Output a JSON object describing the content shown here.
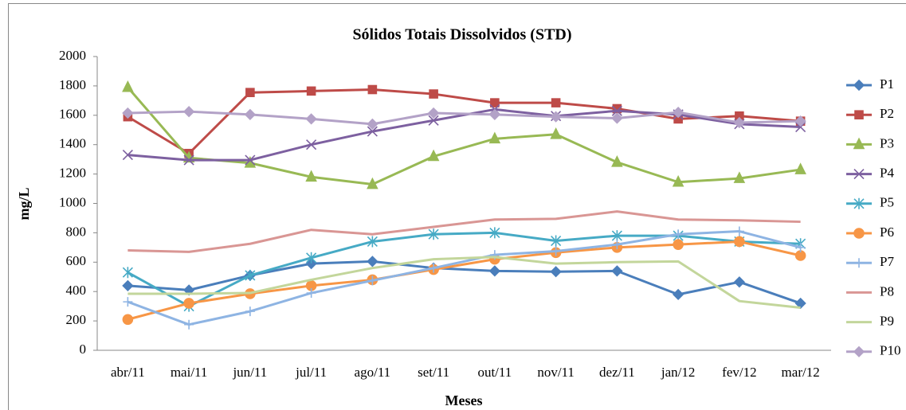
{
  "chart_data": {
    "type": "line",
    "title": "Sólidos Totais Dissolvidos (STD)",
    "x_label": "Meses",
    "y_label": "mg/L",
    "categories": [
      "abr/11",
      "mai/11",
      "jun/11",
      "jul/11",
      "ago/11",
      "set/11",
      "out/11",
      "nov/11",
      "dez/11",
      "jan/12",
      "fev/12",
      "mar/12"
    ],
    "ylim": [
      0,
      2000
    ],
    "yticks": [
      0,
      200,
      400,
      600,
      800,
      1000,
      1200,
      1400,
      1600,
      1800,
      2000
    ],
    "grid": false,
    "legend": "right",
    "series": [
      {
        "name": "P1",
        "color": "#4a7ebb",
        "marker": "diamond",
        "values": [
          440,
          410,
          510,
          590,
          605,
          560,
          540,
          535,
          540,
          380,
          465,
          320
        ]
      },
      {
        "name": "P2",
        "color": "#be4b48",
        "marker": "square",
        "values": [
          1590,
          1340,
          1755,
          1765,
          1775,
          1745,
          1685,
          1685,
          1645,
          1575,
          1595,
          1560
        ]
      },
      {
        "name": "P3",
        "color": "#98b954",
        "marker": "triangle",
        "values": [
          1790,
          1310,
          1275,
          1180,
          1130,
          1320,
          1440,
          1470,
          1280,
          1145,
          1170,
          1230
        ]
      },
      {
        "name": "P4",
        "color": "#7d60a0",
        "marker": "x",
        "values": [
          1330,
          1295,
          1295,
          1400,
          1490,
          1565,
          1640,
          1595,
          1630,
          1605,
          1540,
          1520
        ]
      },
      {
        "name": "P5",
        "color": "#46aac5",
        "marker": "star",
        "values": [
          530,
          300,
          510,
          630,
          740,
          790,
          800,
          745,
          780,
          780,
          740,
          725
        ]
      },
      {
        "name": "P6",
        "color": "#f79646",
        "marker": "circle",
        "values": [
          210,
          320,
          385,
          440,
          480,
          550,
          620,
          665,
          700,
          720,
          740,
          645
        ]
      },
      {
        "name": "P7",
        "color": "#8eb4e3",
        "marker": "plus",
        "values": [
          330,
          175,
          265,
          390,
          475,
          560,
          650,
          675,
          720,
          790,
          810,
          700
        ]
      },
      {
        "name": "P8",
        "color": "#d99694",
        "marker": "none",
        "values": [
          680,
          670,
          725,
          820,
          790,
          840,
          890,
          895,
          945,
          890,
          885,
          875
        ]
      },
      {
        "name": "P9",
        "color": "#c3d69b",
        "marker": "none",
        "values": [
          385,
          385,
          390,
          480,
          560,
          620,
          635,
          590,
          600,
          605,
          335,
          290
        ]
      },
      {
        "name": "P10",
        "color": "#b3a2c7",
        "marker": "diamond",
        "values": [
          1615,
          1625,
          1605,
          1575,
          1540,
          1615,
          1605,
          1590,
          1580,
          1620,
          1550,
          1560
        ]
      }
    ]
  }
}
